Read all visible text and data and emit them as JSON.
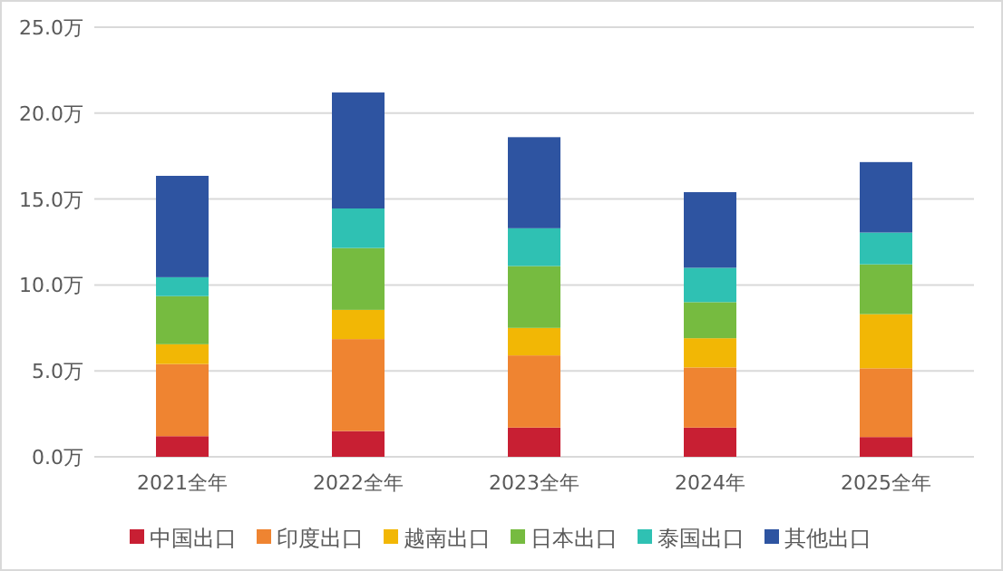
{
  "chart_data": {
    "type": "bar",
    "stacked": true,
    "categories": [
      "2021全年",
      "2022全年",
      "2023全年",
      "2024年",
      "2025全年"
    ],
    "series": [
      {
        "name": "中国出口",
        "color": "#c81f33",
        "values": [
          1.2,
          1.5,
          1.7,
          1.7,
          1.15
        ]
      },
      {
        "name": "印度出口",
        "color": "#ef8431",
        "values": [
          4.2,
          5.35,
          4.2,
          3.5,
          4.0
        ]
      },
      {
        "name": "越南出口",
        "color": "#f2b705",
        "values": [
          1.15,
          1.7,
          1.6,
          1.7,
          3.15
        ]
      },
      {
        "name": "日本出口",
        "color": "#76bb40",
        "values": [
          2.8,
          3.6,
          3.6,
          2.1,
          2.9
        ]
      },
      {
        "name": "泰国出口",
        "color": "#2fc1b3",
        "values": [
          1.1,
          2.3,
          2.2,
          2.0,
          1.85
        ]
      },
      {
        "name": "其他出口",
        "color": "#2e54a1",
        "values": [
          5.9,
          6.75,
          5.3,
          4.4,
          4.1
        ]
      }
    ],
    "ylim": [
      0,
      25
    ],
    "yticks": [
      {
        "value": 0,
        "label": "0.0万"
      },
      {
        "value": 5,
        "label": "5.0万"
      },
      {
        "value": 10,
        "label": "10.0万"
      },
      {
        "value": 15,
        "label": "15.0万"
      },
      {
        "value": 20,
        "label": "20.0万"
      },
      {
        "value": 25,
        "label": "25.0万"
      }
    ],
    "grid": "y",
    "legend": "bottom"
  }
}
